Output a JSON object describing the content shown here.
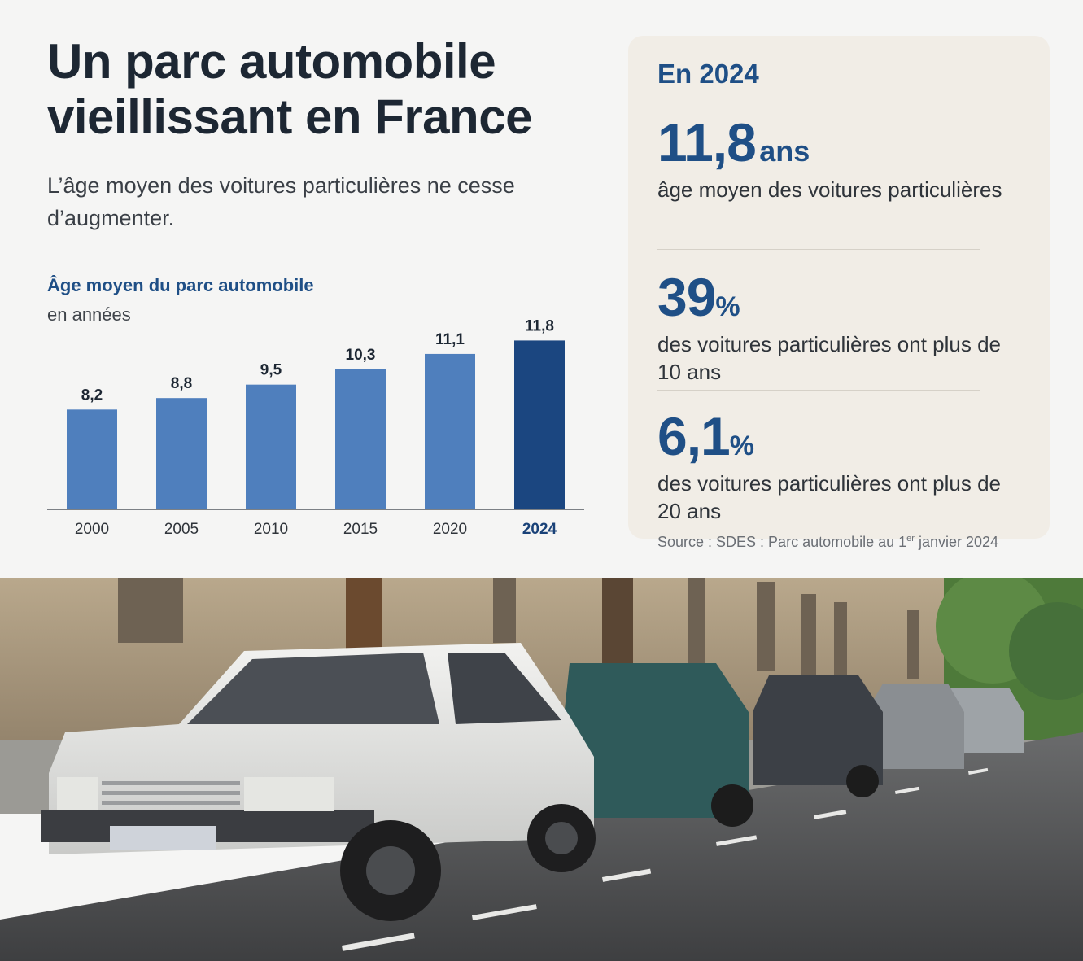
{
  "header": {
    "title": "Un parc automobile vieillissant en France",
    "subtitle": "L’âge moyen des voitures particulières ne cesse d’augmenter."
  },
  "chart_section": {
    "title": "Âge moyen du parc automobile",
    "unit": "en années"
  },
  "chart_data": {
    "type": "bar",
    "title": "Âge moyen du parc automobile",
    "ylabel": "en années",
    "xlabel": "",
    "categories": [
      "2000",
      "2005",
      "2010",
      "2015",
      "2020",
      "2024"
    ],
    "values": [
      8.2,
      8.8,
      9.5,
      10.3,
      11.1,
      11.8
    ],
    "value_labels": [
      "8,2",
      "8,8",
      "9,5",
      "10,3",
      "11,1",
      "11,8"
    ],
    "highlight_category": "2024",
    "ylim": [
      3,
      12
    ],
    "grid": false,
    "legend": "none",
    "colors": {
      "bar": "#4f7fbd",
      "highlight": "#1b4680",
      "axis": "#555a60"
    }
  },
  "key_figures": {
    "heading": "En 2024",
    "stats": [
      {
        "value": "11,8",
        "unit": "ans",
        "label": "âge moyen des voitures particulières"
      },
      {
        "value": "39",
        "unit": "%",
        "label": "des voitures particulières ont plus de 10 ans"
      },
      {
        "value": "6,1",
        "unit": "%",
        "label": "des voitures particulières ont plus de 20 ans"
      }
    ]
  },
  "source": {
    "prefix": "Source : SDES : Parc automobile au 1",
    "sup": "er",
    "suffix": " janvier 2024"
  },
  "colors": {
    "accent": "#1f4f86",
    "panel_bg": "#f1ede6",
    "page_bg": "#f5f5f4"
  }
}
